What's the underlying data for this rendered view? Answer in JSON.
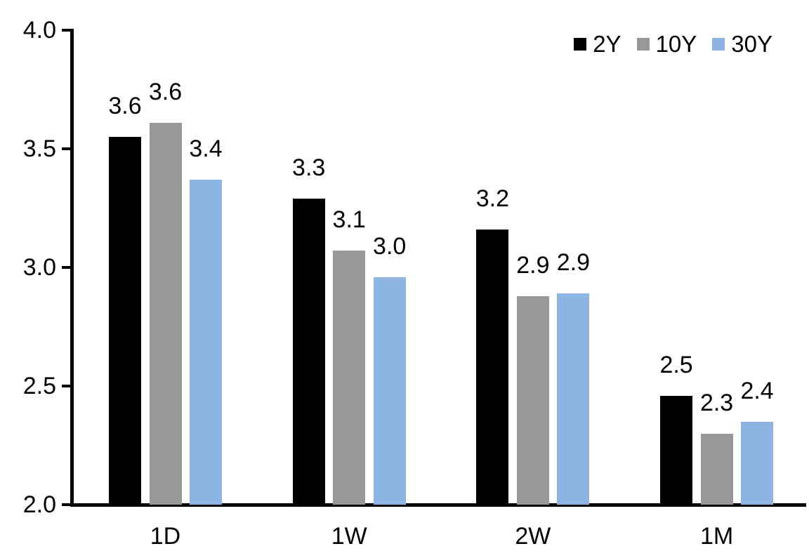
{
  "chart_data": {
    "type": "bar",
    "title": "",
    "xlabel": "",
    "ylabel": "",
    "categories": [
      "1D",
      "1W",
      "2W",
      "1M"
    ],
    "series": [
      {
        "name": "2Y",
        "color": "#000000",
        "values": [
          3.55,
          3.29,
          3.16,
          2.46
        ],
        "labels": [
          "3.6",
          "3.3",
          "3.2",
          "2.5"
        ]
      },
      {
        "name": "10Y",
        "color": "#989898",
        "values": [
          3.61,
          3.07,
          2.88,
          2.3
        ],
        "labels": [
          "3.6",
          "3.1",
          "2.9",
          "2.3"
        ]
      },
      {
        "name": "30Y",
        "color": "#8db4e2",
        "values": [
          3.37,
          2.96,
          2.89,
          2.35
        ],
        "labels": [
          "3.4",
          "3.0",
          "2.9",
          "2.4"
        ]
      }
    ],
    "ylim": [
      2.0,
      4.0
    ],
    "y_ticks": [
      {
        "value": 2.0,
        "label": "2.0"
      },
      {
        "value": 2.5,
        "label": "2.5"
      },
      {
        "value": 3.0,
        "label": "3.0"
      },
      {
        "value": 3.5,
        "label": "3.5"
      },
      {
        "value": 4.0,
        "label": "4.0"
      }
    ],
    "grid": false,
    "legend_position": "top-right",
    "axis_color": "#000000",
    "background_color": "#ffffff",
    "data_labels_shown": true
  }
}
